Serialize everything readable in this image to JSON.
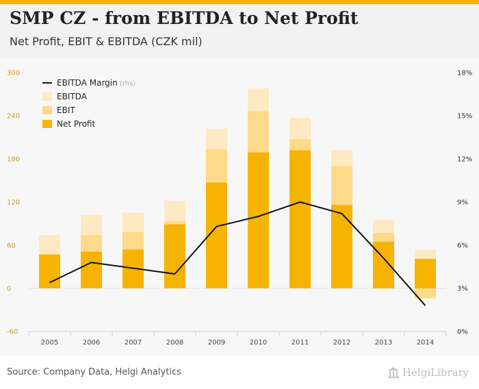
{
  "header": {
    "title": "SMP CZ - from EBITDA to Net Profit",
    "subtitle": "Net Profit, EBIT & EBITDA (CZK mil)"
  },
  "footer": {
    "source": "Source: Company Data, Helgi Analytics",
    "logo_text": "HelgiLibrary"
  },
  "colors": {
    "net_profit": "#f6b400",
    "ebit": "#fdd98a",
    "ebitda": "#fee9c2",
    "margin_line": "#111111",
    "left_axis_text": "#c89a2a",
    "right_axis_text": "#333333"
  },
  "chart_data": {
    "type": "bar",
    "title": "SMP CZ - from EBITDA to Net Profit",
    "subtitle": "Net Profit, EBIT & EBITDA (CZK mil)",
    "categories": [
      "2005",
      "2006",
      "2007",
      "2008",
      "2009",
      "2010",
      "2011",
      "2012",
      "2013",
      "2014"
    ],
    "series": [
      {
        "name": "EBITDA",
        "kind": "overlapping-bar",
        "values": [
          74,
          102,
          105,
          122,
          222,
          278,
          237,
          192,
          95,
          54
        ]
      },
      {
        "name": "EBIT",
        "kind": "overlapping-bar",
        "values": [
          45,
          74,
          78,
          93,
          193,
          246,
          207,
          170,
          77,
          -14
        ]
      },
      {
        "name": "Net Profit",
        "kind": "overlapping-bar",
        "values": [
          47,
          51,
          54,
          89,
          147,
          189,
          192,
          116,
          65,
          41
        ]
      },
      {
        "name": "EBITDA Margin",
        "kind": "line",
        "axis": "right",
        "unit": "%",
        "values": [
          3.4,
          4.8,
          4.4,
          4.0,
          7.3,
          8.0,
          9.0,
          8.2,
          5.1,
          1.8
        ]
      }
    ],
    "left_axis": {
      "ylim": [
        -60,
        300
      ],
      "ticks": [
        -60,
        0,
        60,
        120,
        180,
        240,
        300
      ]
    },
    "right_axis": {
      "ylim": [
        0,
        18
      ],
      "ticks": [
        "0%",
        "3%",
        "6%",
        "9%",
        "12%",
        "15%",
        "18%"
      ]
    },
    "legend": {
      "position": "top-left",
      "items": [
        {
          "label": "EBITDA Margin",
          "suffix": "(rhs)",
          "type": "line"
        },
        {
          "label": "EBITDA",
          "type": "box"
        },
        {
          "label": "EBIT",
          "type": "box"
        },
        {
          "label": "Net Profit",
          "type": "box"
        }
      ]
    },
    "grid": false
  }
}
